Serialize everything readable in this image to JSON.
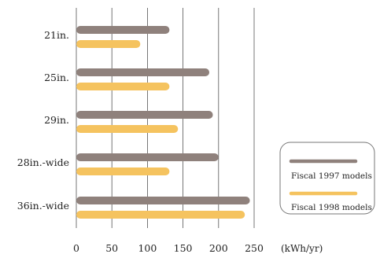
{
  "chart_data": {
    "type": "bar",
    "orientation": "horizontal",
    "categories": [
      "21in.",
      "25in.",
      "29in.",
      "28in.-wide",
      "36in.-wide"
    ],
    "series": [
      {
        "name": "Fiscal 1997 models",
        "values": [
          131,
          187,
          192,
          200,
          244
        ],
        "color": "#8f817c"
      },
      {
        "name": "Fiscal 1998 models",
        "values": [
          90,
          131,
          143,
          131,
          237
        ],
        "color": "#f5c35f"
      }
    ],
    "x_ticks": [
      "0",
      "50",
      "100",
      "150",
      "200",
      "250"
    ],
    "x_tick_values": [
      0,
      50,
      100,
      150,
      200,
      250
    ],
    "xlim": [
      0,
      250
    ],
    "unit_label": "(kWh/yr)",
    "grid": "vertical",
    "legend_position": "right",
    "gridline_color": "#555555"
  }
}
